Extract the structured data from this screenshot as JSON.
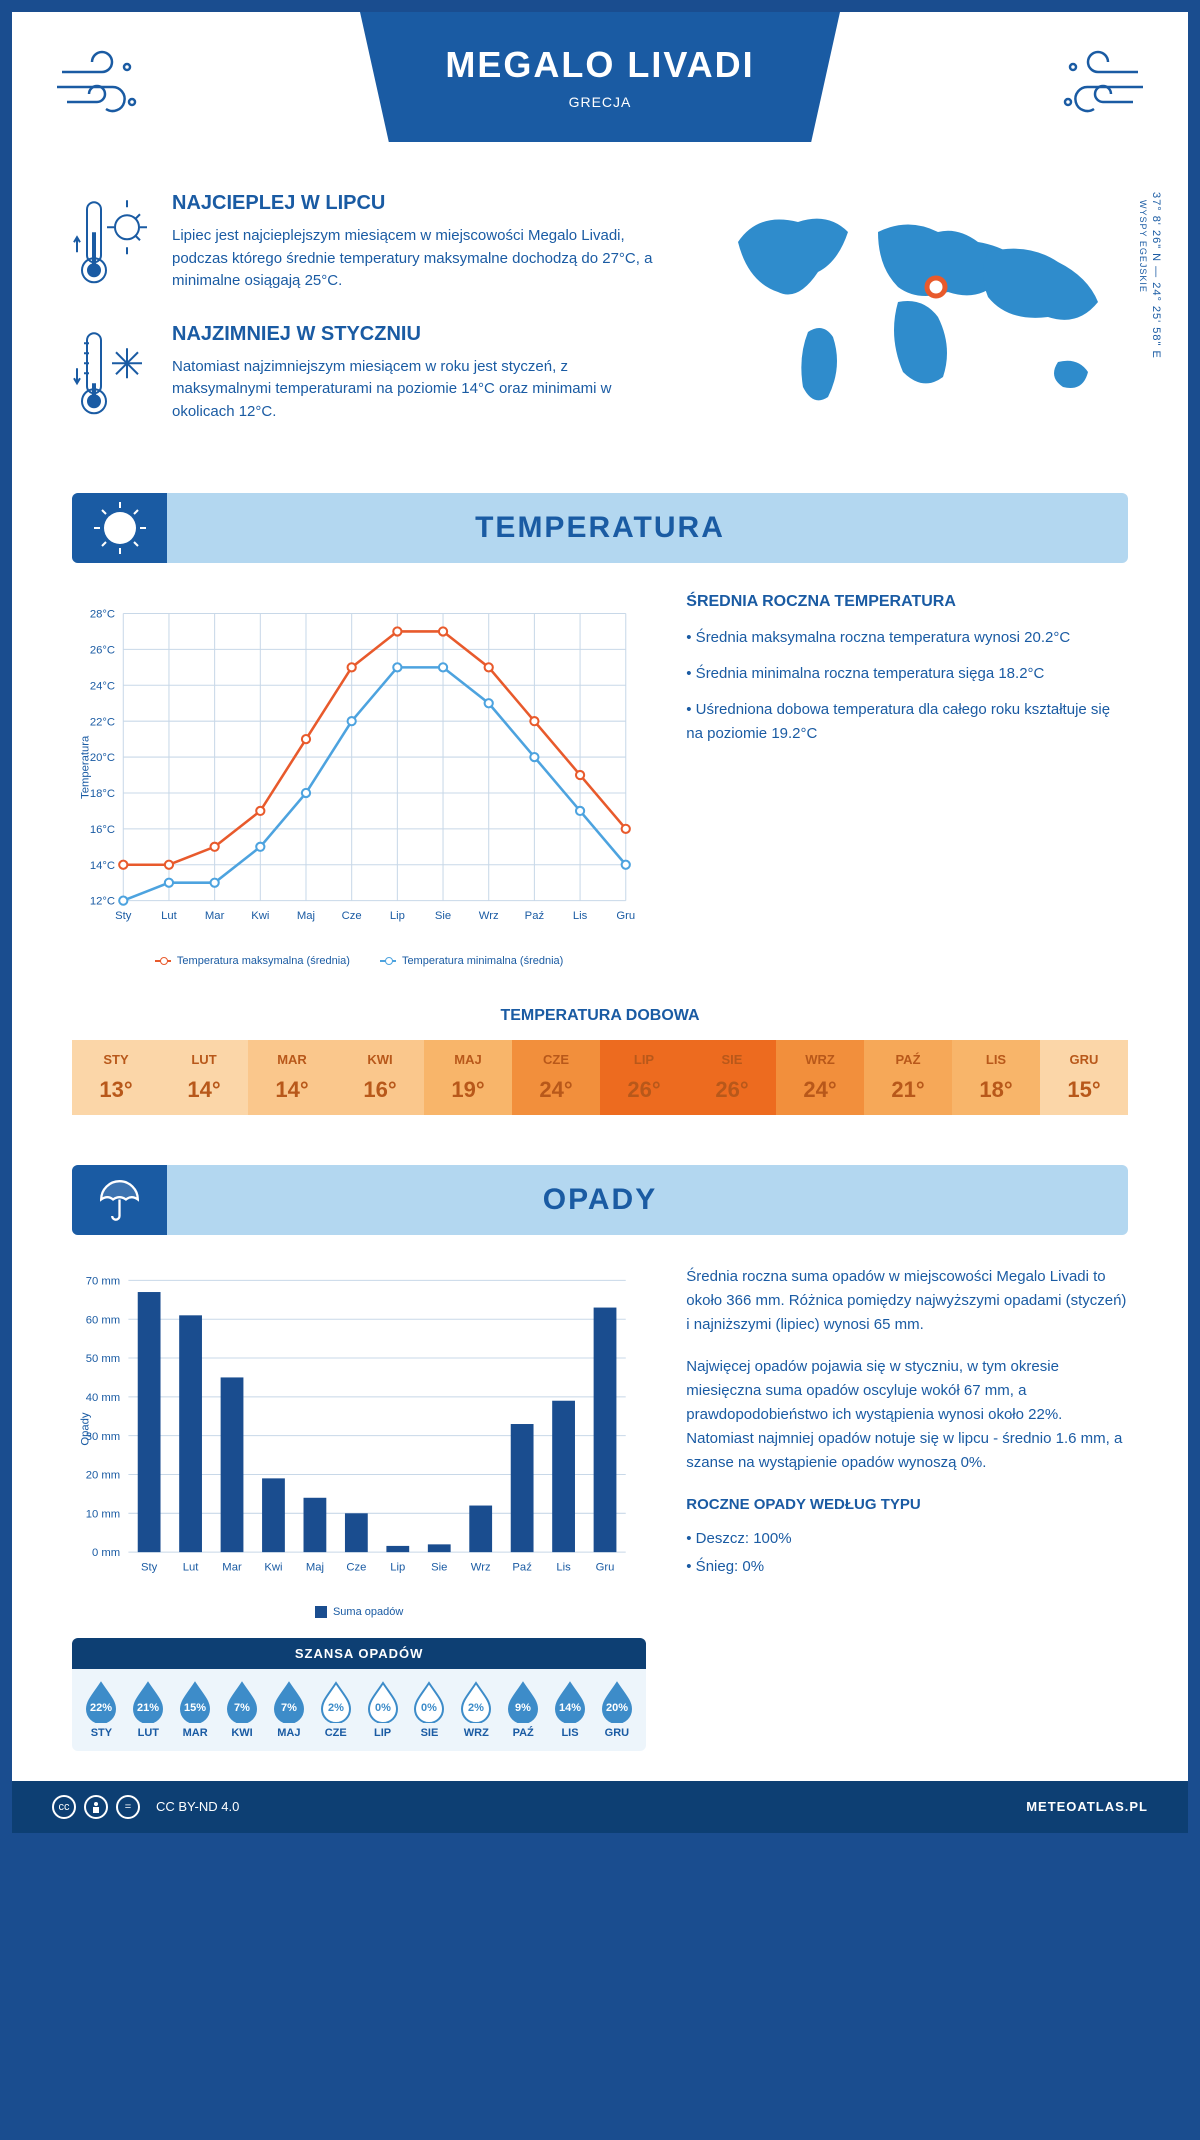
{
  "header": {
    "title": "MEGALO LIVADI",
    "subtitle": "GRECJA"
  },
  "coords": "37° 8' 26\" N — 24° 25' 58\" E",
  "region": "WYSPY EGEJSKIE",
  "intro": {
    "hot": {
      "title": "NAJCIEPLEJ W LIPCU",
      "text": "Lipiec jest najcieplejszym miesiącem w miejscowości Megalo Livadi, podczas którego średnie temperatury maksymalne dochodzą do 27°C, a minimalne osiągają 25°C."
    },
    "cold": {
      "title": "NAJZIMNIEJ W STYCZNIU",
      "text": "Natomiast najzimniejszym miesiącem w roku jest styczeń, z maksymalnymi temperaturami na poziomie 14°C oraz minimami w okolicach 12°C."
    }
  },
  "temp": {
    "section_title": "TEMPERATURA",
    "chart": {
      "months": [
        "Sty",
        "Lut",
        "Mar",
        "Kwi",
        "Maj",
        "Cze",
        "Lip",
        "Sie",
        "Wrz",
        "Paź",
        "Lis",
        "Gru"
      ],
      "max": [
        14,
        14,
        15,
        17,
        21,
        25,
        27,
        27,
        25,
        22,
        19,
        16
      ],
      "min": [
        12,
        13,
        13,
        15,
        18,
        22,
        25,
        25,
        23,
        20,
        17,
        14
      ],
      "ylim": [
        12,
        28
      ],
      "ytick_step": 2,
      "ylabel": "Temperatura",
      "max_color": "#e85a2c",
      "min_color": "#4da3df",
      "grid_color": "#c8d8e8",
      "legend_max": "Temperatura maksymalna (średnia)",
      "legend_min": "Temperatura minimalna (średnia)"
    },
    "annual": {
      "title": "ŚREDNIA ROCZNA TEMPERATURA",
      "l1": "• Średnia maksymalna roczna temperatura wynosi 20.2°C",
      "l2": "• Średnia minimalna roczna temperatura sięga 18.2°C",
      "l3": "• Uśredniona dobowa temperatura dla całego roku kształtuje się na poziomie 19.2°C"
    },
    "daily": {
      "title": "TEMPERATURA DOBOWA",
      "months": [
        "STY",
        "LUT",
        "MAR",
        "KWI",
        "MAJ",
        "CZE",
        "LIP",
        "SIE",
        "WRZ",
        "PAŹ",
        "LIS",
        "GRU"
      ],
      "values": [
        "13°",
        "14°",
        "14°",
        "16°",
        "19°",
        "24°",
        "26°",
        "26°",
        "24°",
        "21°",
        "18°",
        "15°"
      ],
      "colors": [
        "#fbd6a8",
        "#fbd6a8",
        "#fac78c",
        "#fac78c",
        "#f8b56a",
        "#f28f3c",
        "#ed6b1f",
        "#ed6b1f",
        "#f28f3c",
        "#f6a858",
        "#f8b56a",
        "#fbd6a8"
      ],
      "text_color": "#b8581a"
    }
  },
  "precip": {
    "section_title": "OPADY",
    "chart": {
      "months": [
        "Sty",
        "Lut",
        "Mar",
        "Kwi",
        "Maj",
        "Cze",
        "Lip",
        "Sie",
        "Wrz",
        "Paź",
        "Lis",
        "Gru"
      ],
      "values": [
        67,
        61,
        45,
        19,
        14,
        10,
        1.6,
        2,
        12,
        33,
        39,
        63
      ],
      "ylim": [
        0,
        70
      ],
      "ytick_step": 10,
      "ylabel": "Opady",
      "bar_color": "#1a4d8f",
      "grid_color": "#c8d8e8",
      "legend": "Suma opadów"
    },
    "text1": "Średnia roczna suma opadów w miejscowości Megalo Livadi to około 366 mm. Różnica pomiędzy najwyższymi opadami (styczeń) i najniższymi (lipiec) wynosi 65 mm.",
    "text2": "Najwięcej opadów pojawia się w styczniu, w tym okresie miesięczna suma opadów oscyluje wokół 67 mm, a prawdopodobieństwo ich wystąpienia wynosi około 22%. Natomiast najmniej opadów notuje się w lipcu - średnio 1.6 mm, a szanse na wystąpienie opadów wynoszą 0%.",
    "chance": {
      "title": "SZANSA OPADÓW",
      "months": [
        "STY",
        "LUT",
        "MAR",
        "KWI",
        "MAJ",
        "CZE",
        "LIP",
        "SIE",
        "WRZ",
        "PAŹ",
        "LIS",
        "GRU"
      ],
      "values": [
        "22%",
        "21%",
        "15%",
        "7%",
        "7%",
        "2%",
        "0%",
        "0%",
        "2%",
        "9%",
        "14%",
        "20%"
      ],
      "filled": [
        true,
        true,
        true,
        true,
        true,
        false,
        false,
        false,
        false,
        true,
        true,
        true
      ],
      "fill_color": "#3d8cc9",
      "outline_color": "#3d8cc9"
    },
    "type": {
      "title": "ROCZNE OPADY WEDŁUG TYPU",
      "l1": "• Deszcz: 100%",
      "l2": "• Śnieg: 0%"
    }
  },
  "footer": {
    "license": "CC BY-ND 4.0",
    "site": "METEOATLAS.PL"
  }
}
